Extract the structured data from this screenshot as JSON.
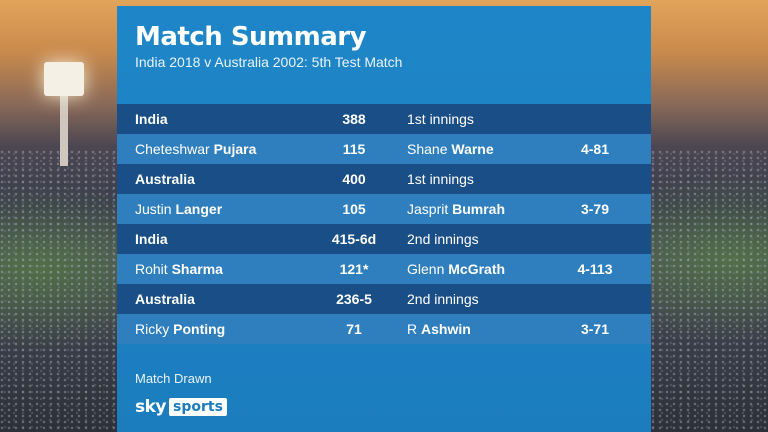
{
  "graphic": {
    "title": "Match Summary",
    "subtitle": "India 2018 v Australia 2002:  5th Test Match",
    "result": "Match Drawn"
  },
  "rows": [
    {
      "kind": "team",
      "name": "India",
      "score": "388",
      "right": "1st innings",
      "fig": ""
    },
    {
      "kind": "player",
      "first": "Cheteshwar ",
      "last": "Pujara",
      "score": "115",
      "rfirst": "Shane ",
      "rlast": "Warne",
      "fig": "4-81"
    },
    {
      "kind": "team",
      "name": "Australia",
      "score": "400",
      "right": "1st innings",
      "fig": ""
    },
    {
      "kind": "player",
      "first": "Justin ",
      "last": "Langer",
      "score": "105",
      "rfirst": "Jasprit ",
      "rlast": "Bumrah",
      "fig": "3-79"
    },
    {
      "kind": "team",
      "name": "India",
      "score": "415-6d",
      "right": "2nd innings",
      "fig": ""
    },
    {
      "kind": "player",
      "first": "Rohit ",
      "last": "Sharma",
      "score": "121*",
      "rfirst": "Glenn ",
      "rlast": "McGrath",
      "fig": "4-113"
    },
    {
      "kind": "team",
      "name": "Australia",
      "score": "236-5",
      "right": "2nd innings",
      "fig": ""
    },
    {
      "kind": "player",
      "first": "Ricky ",
      "last": "Ponting",
      "score": "71",
      "rfirst": "R ",
      "rlast": "Ashwin",
      "fig": "3-71"
    }
  ],
  "logo": {
    "sky": "sky",
    "sports": "sports"
  },
  "colors": {
    "panel": "#1b7dbe",
    "team_row": "#1a4e86",
    "player_row": "#2f7fbe"
  }
}
